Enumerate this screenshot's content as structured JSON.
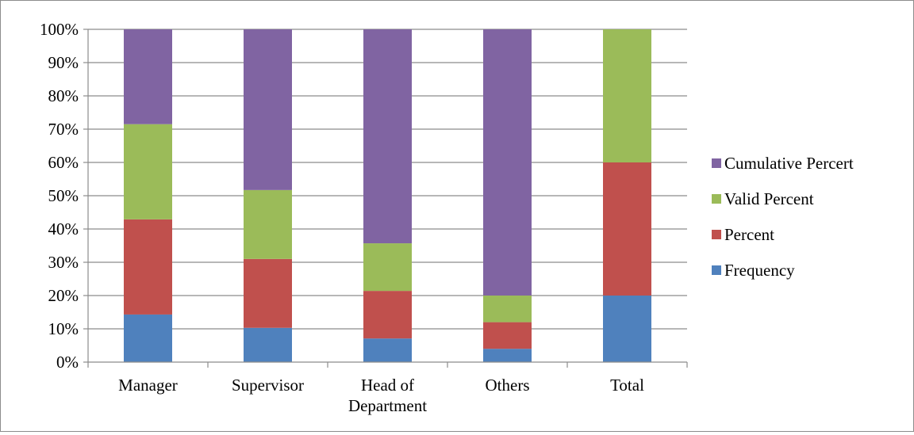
{
  "chart_data": {
    "type": "bar",
    "stacked": "100%",
    "categories": [
      "Manager",
      "Supervisor",
      "Head of Department",
      "Others",
      "Total"
    ],
    "category_label_lines": [
      [
        "Manager"
      ],
      [
        "Supervisor"
      ],
      [
        "Head of",
        "Department"
      ],
      [
        "Others"
      ],
      [
        "Total"
      ]
    ],
    "series": [
      {
        "name": "Frequency",
        "color": "#4f81bd",
        "values": [
          14.3,
          10.3,
          7.1,
          4.0,
          20.0
        ]
      },
      {
        "name": "Percent",
        "color": "#c0504d",
        "values": [
          28.6,
          20.7,
          14.3,
          8.0,
          40.0
        ]
      },
      {
        "name": "Valid Percent",
        "color": "#9bbb59",
        "values": [
          28.6,
          20.7,
          14.3,
          8.0,
          40.0
        ]
      },
      {
        "name": "Cumulative Percert",
        "color": "#8064a2",
        "values": [
          28.5,
          48.3,
          64.3,
          80.0,
          0.0
        ]
      }
    ],
    "yticks": [
      "0%",
      "10%",
      "20%",
      "30%",
      "40%",
      "50%",
      "60%",
      "70%",
      "80%",
      "90%",
      "100%"
    ],
    "ylim": [
      0,
      100
    ],
    "grid": true,
    "legend": "right",
    "legend_order": [
      "Cumulative Percert",
      "Valid Percent",
      "Percent",
      "Frequency"
    ]
  }
}
